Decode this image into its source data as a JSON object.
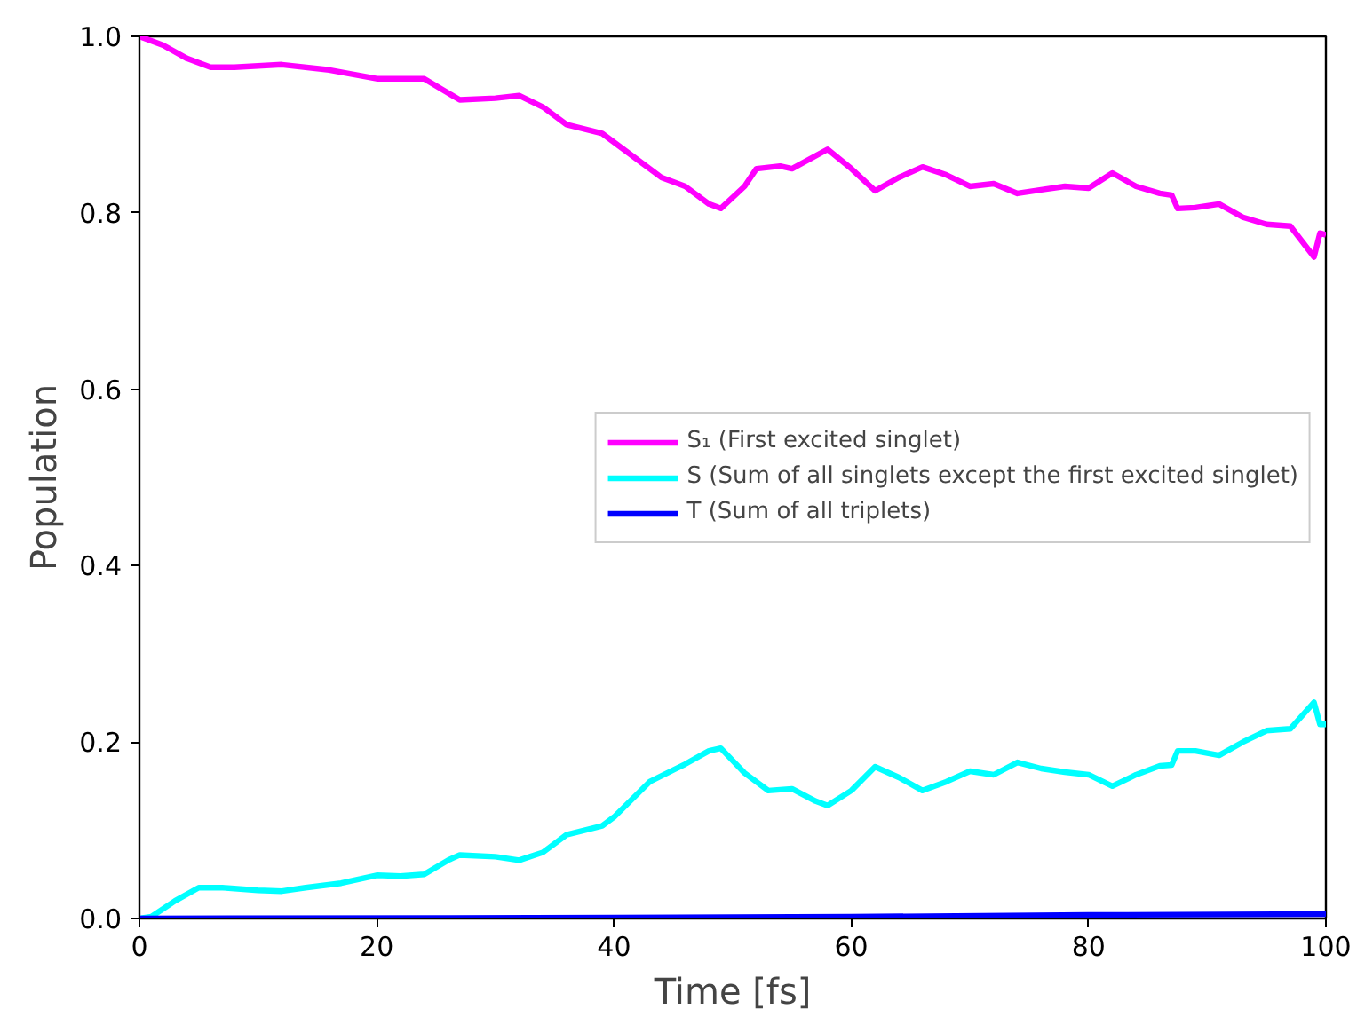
{
  "chart_data": {
    "type": "line",
    "xlabel": "Time [fs]",
    "ylabel": "Population",
    "xlim": [
      0,
      100
    ],
    "ylim": [
      0,
      1.0
    ],
    "xticks": [
      0,
      20,
      40,
      60,
      80,
      100
    ],
    "yticks": [
      {
        "value": 0,
        "label": "0.0"
      },
      {
        "value": 0.2,
        "label": "0.2"
      },
      {
        "value": 0.4,
        "label": "0.4"
      },
      {
        "value": 0.6,
        "label": "0.6"
      },
      {
        "value": 0.8,
        "label": "0.8"
      },
      {
        "value": 1.0,
        "label": "1.0"
      }
    ],
    "grid": false,
    "legend": "right",
    "marker": "none",
    "line_style": "solid",
    "series": [
      {
        "name": "S₁ (First excited singlet)",
        "color": "#ff00ff",
        "x": [
          0,
          2,
          4,
          6,
          8,
          12,
          16,
          20,
          24,
          27,
          30,
          32,
          34,
          36,
          39,
          42,
          44,
          46,
          48,
          49,
          51,
          52,
          54,
          55,
          58,
          60,
          62,
          64,
          66,
          68,
          70,
          72,
          74,
          76,
          78,
          80,
          82,
          84,
          86,
          87,
          87.5,
          89,
          91,
          93,
          95,
          97,
          99,
          99.5,
          100
        ],
        "values": [
          1.0,
          0.99,
          0.975,
          0.965,
          0.965,
          0.968,
          0.962,
          0.952,
          0.952,
          0.928,
          0.93,
          0.933,
          0.92,
          0.9,
          0.89,
          0.86,
          0.84,
          0.83,
          0.81,
          0.805,
          0.83,
          0.85,
          0.853,
          0.85,
          0.872,
          0.85,
          0.825,
          0.84,
          0.852,
          0.843,
          0.83,
          0.833,
          0.822,
          0.826,
          0.83,
          0.828,
          0.845,
          0.83,
          0.822,
          0.82,
          0.805,
          0.806,
          0.81,
          0.795,
          0.787,
          0.785,
          0.75,
          0.777,
          0.775
        ]
      },
      {
        "name": "S (Sum of all singlets except the first excited singlet)",
        "color": "#00ffff",
        "x": [
          0,
          1,
          3,
          5,
          7,
          10,
          12,
          14,
          17,
          20,
          22,
          24,
          26,
          27,
          30,
          32,
          34,
          36,
          39,
          40,
          43,
          46,
          48,
          49,
          51,
          53,
          55,
          57,
          58,
          60,
          62,
          64,
          66,
          68,
          70,
          72,
          74,
          76,
          78,
          80,
          82,
          84,
          86,
          87,
          87.5,
          89,
          91,
          93,
          95,
          97,
          99,
          99.5,
          100
        ],
        "values": [
          0,
          0.002,
          0.02,
          0.035,
          0.035,
          0.032,
          0.031,
          0.035,
          0.04,
          0.049,
          0.048,
          0.05,
          0.066,
          0.072,
          0.07,
          0.066,
          0.075,
          0.095,
          0.105,
          0.115,
          0.155,
          0.175,
          0.19,
          0.193,
          0.165,
          0.145,
          0.147,
          0.133,
          0.128,
          0.145,
          0.172,
          0.16,
          0.145,
          0.155,
          0.167,
          0.163,
          0.177,
          0.17,
          0.166,
          0.163,
          0.15,
          0.163,
          0.173,
          0.174,
          0.19,
          0.19,
          0.185,
          0.2,
          0.213,
          0.215,
          0.245,
          0.22,
          0.22
        ]
      },
      {
        "name": "T (Sum of all triplets)",
        "color": "#0000ff",
        "x": [
          0,
          40,
          60,
          80,
          100
        ],
        "values": [
          0,
          0.001,
          0.002,
          0.004,
          0.005
        ]
      }
    ]
  }
}
